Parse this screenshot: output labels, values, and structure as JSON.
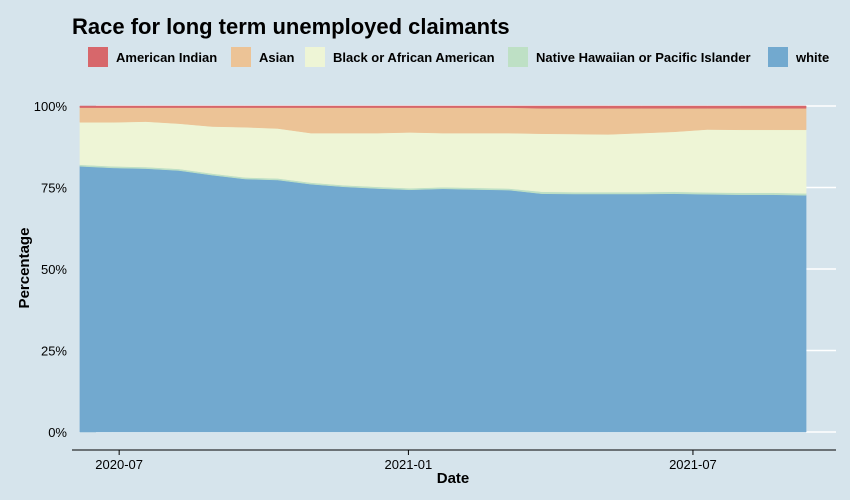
{
  "chart_data": {
    "type": "area",
    "stacked": true,
    "normalized": true,
    "title": "Race for long term unemployed claimants",
    "xlabel": "Date",
    "ylabel": "Percentage",
    "legend_position": "top",
    "grid": true,
    "ylim": [
      0,
      100
    ],
    "y_ticks": [
      "0%",
      "25%",
      "50%",
      "75%",
      "100%"
    ],
    "y_tick_values": [
      0,
      25,
      50,
      75,
      100
    ],
    "x_ticks": [
      "2020-07",
      "2021-01",
      "2021-07"
    ],
    "x_tick_values": [
      "2020-07-01",
      "2021-01-01",
      "2021-07-01"
    ],
    "xlim": [
      "2020-06-01",
      "2021-09-30"
    ],
    "x": [
      "2020-06-06",
      "2020-06-27",
      "2020-07-18",
      "2020-08-08",
      "2020-08-29",
      "2020-09-19",
      "2020-10-10",
      "2020-10-31",
      "2020-11-21",
      "2020-12-12",
      "2021-01-02",
      "2021-01-23",
      "2021-02-13",
      "2021-03-06",
      "2021-03-27",
      "2021-04-17",
      "2021-05-08",
      "2021-05-29",
      "2021-06-19",
      "2021-07-10",
      "2021-07-31",
      "2021-08-21",
      "2021-09-11"
    ],
    "series": [
      {
        "name": "white",
        "color": "#72a9cf",
        "values": [
          81.5,
          81.0,
          80.8,
          80.2,
          78.8,
          77.6,
          77.3,
          76.0,
          75.2,
          74.7,
          74.3,
          74.6,
          74.4,
          74.2,
          73.1,
          73.0,
          73.0,
          73.0,
          73.1,
          72.9,
          72.8,
          72.8,
          72.6
        ]
      },
      {
        "name": "Native Hawaiian or Pacific Islander",
        "color": "#bee0c5",
        "values": [
          0.5,
          0.5,
          0.5,
          0.5,
          0.5,
          0.5,
          0.5,
          0.5,
          0.5,
          0.5,
          0.5,
          0.5,
          0.5,
          0.5,
          0.6,
          0.6,
          0.6,
          0.6,
          0.6,
          0.6,
          0.6,
          0.6,
          0.6
        ]
      },
      {
        "name": "Black or African American",
        "color": "#eef5d6",
        "values": [
          13.0,
          13.5,
          13.9,
          13.9,
          14.4,
          15.4,
          15.3,
          15.2,
          16.0,
          16.5,
          17.1,
          16.6,
          16.8,
          17.0,
          17.8,
          17.8,
          17.7,
          18.1,
          18.4,
          19.3,
          19.3,
          19.3,
          19.5
        ]
      },
      {
        "name": "Asian",
        "color": "#ecc396",
        "values": [
          4.5,
          4.5,
          4.3,
          4.9,
          5.8,
          6.0,
          6.4,
          7.8,
          7.8,
          7.8,
          7.6,
          7.8,
          7.8,
          7.8,
          7.8,
          7.9,
          8.0,
          7.6,
          7.2,
          6.5,
          6.6,
          6.6,
          6.6
        ]
      },
      {
        "name": "American Indian",
        "color": "#d7676b",
        "values": [
          0.5,
          0.5,
          0.5,
          0.5,
          0.5,
          0.5,
          0.5,
          0.5,
          0.5,
          0.5,
          0.5,
          0.5,
          0.5,
          0.5,
          0.7,
          0.7,
          0.7,
          0.7,
          0.7,
          0.7,
          0.7,
          0.7,
          0.7
        ]
      }
    ],
    "legend_order": [
      "American Indian",
      "Asian",
      "Black or African American",
      "Native Hawaiian or Pacific Islander",
      "white"
    ]
  }
}
